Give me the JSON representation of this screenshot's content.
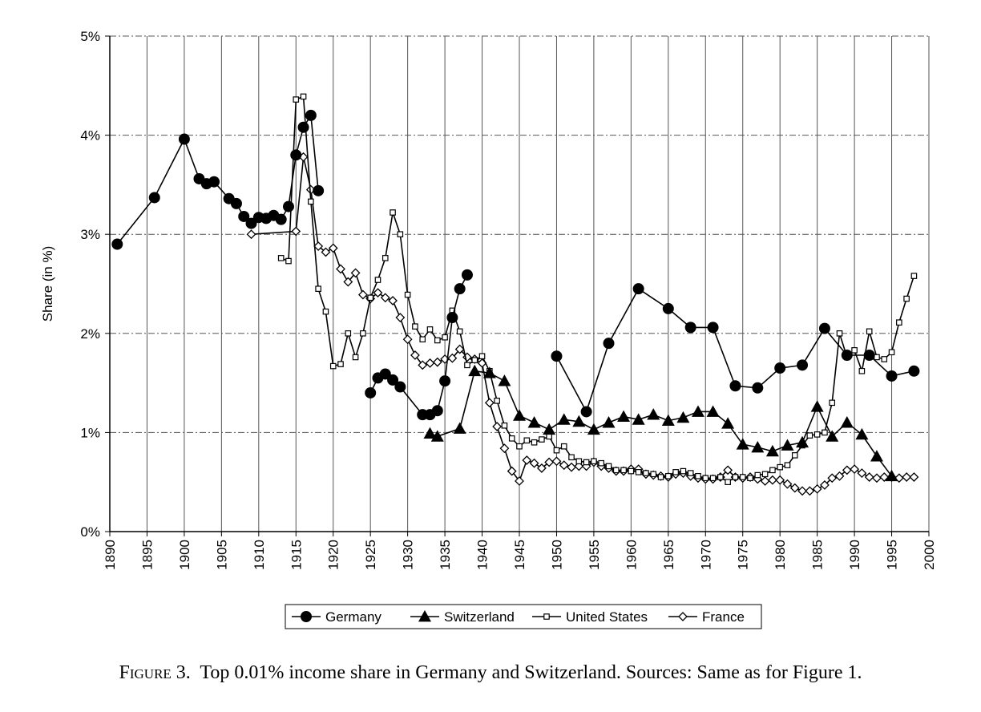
{
  "caption": {
    "label": "Figure 3.",
    "text": "Top 0.01% income share in Germany and Switzerland. Sources: Same as for Figure 1."
  },
  "chart_data": {
    "type": "line",
    "title": "",
    "xlabel": "",
    "ylabel": "Share (in %)",
    "xlim": [
      1890,
      2000
    ],
    "ylim": [
      0,
      5
    ],
    "x_ticks": [
      "1890",
      "1895",
      "1900",
      "1905",
      "1910",
      "1915",
      "1920",
      "1925",
      "1930",
      "1935",
      "1940",
      "1945",
      "1950",
      "1955",
      "1960",
      "1965",
      "1970",
      "1975",
      "1980",
      "1985",
      "1990",
      "1995",
      "2000"
    ],
    "y_ticks": [
      "0%",
      "1%",
      "2%",
      "3%",
      "4%",
      "5%"
    ],
    "grid": true,
    "legend_position": "bottom",
    "series": [
      {
        "name": "Germany",
        "marker": "filled-circle",
        "color": "#000000",
        "points": [
          [
            1891,
            2.9
          ],
          [
            1896,
            3.37
          ],
          [
            1900,
            3.96
          ],
          [
            1902,
            3.56
          ],
          [
            1903,
            3.51
          ],
          [
            1904,
            3.53
          ],
          [
            1906,
            3.36
          ],
          [
            1907,
            3.31
          ],
          [
            1908,
            3.18
          ],
          [
            1909,
            3.11
          ],
          [
            1910,
            3.17
          ],
          [
            1911,
            3.16
          ],
          [
            1912,
            3.19
          ],
          [
            1913,
            3.15
          ],
          [
            1914,
            3.28
          ],
          [
            1915,
            3.8
          ],
          [
            1916,
            4.08
          ],
          [
            1917,
            4.2
          ],
          [
            1918,
            3.44
          ],
          null,
          [
            1925,
            1.4
          ],
          [
            1926,
            1.55
          ],
          [
            1927,
            1.59
          ],
          [
            1928,
            1.53
          ],
          [
            1929,
            1.46
          ],
          [
            1932,
            1.18
          ],
          [
            1933,
            1.18
          ],
          [
            1934,
            1.22
          ],
          [
            1935,
            1.52
          ],
          [
            1936,
            2.16
          ],
          [
            1937,
            2.45
          ],
          [
            1938,
            2.59
          ],
          null,
          [
            1950,
            1.77
          ],
          [
            1954,
            1.21
          ],
          [
            1957,
            1.9
          ],
          [
            1961,
            2.45
          ],
          [
            1965,
            2.25
          ],
          [
            1968,
            2.06
          ],
          [
            1971,
            2.06
          ],
          [
            1974,
            1.47
          ],
          [
            1977,
            1.45
          ],
          [
            1980,
            1.65
          ],
          [
            1983,
            1.68
          ],
          [
            1986,
            2.05
          ],
          [
            1989,
            1.78
          ],
          [
            1992,
            1.78
          ],
          [
            1995,
            1.57
          ],
          [
            1998,
            1.62
          ]
        ]
      },
      {
        "name": "Switzerland",
        "marker": "filled-triangle",
        "color": "#000000",
        "points": [
          [
            1933,
            0.99
          ],
          [
            1934,
            0.96
          ],
          [
            1937,
            1.04
          ],
          [
            1939,
            1.62
          ],
          [
            1941,
            1.6
          ],
          [
            1943,
            1.52
          ],
          [
            1945,
            1.17
          ],
          [
            1947,
            1.1
          ],
          [
            1949,
            1.03
          ],
          [
            1951,
            1.13
          ],
          [
            1953,
            1.11
          ],
          [
            1955,
            1.03
          ],
          [
            1957,
            1.1
          ],
          [
            1959,
            1.16
          ],
          [
            1961,
            1.13
          ],
          [
            1963,
            1.18
          ],
          [
            1965,
            1.12
          ],
          [
            1967,
            1.15
          ],
          [
            1969,
            1.21
          ],
          [
            1971,
            1.21
          ],
          [
            1973,
            1.09
          ],
          [
            1975,
            0.88
          ],
          [
            1977,
            0.85
          ],
          [
            1979,
            0.81
          ],
          [
            1981,
            0.87
          ],
          [
            1983,
            0.9
          ],
          [
            1985,
            1.26
          ],
          [
            1987,
            0.96
          ],
          [
            1989,
            1.1
          ],
          [
            1991,
            0.98
          ],
          [
            1993,
            0.76
          ],
          [
            1995,
            0.56
          ]
        ]
      },
      {
        "name": "United States",
        "marker": "open-square",
        "color": "#000000",
        "points": [
          [
            1913,
            2.76
          ],
          [
            1914,
            2.73
          ],
          [
            1915,
            4.36
          ],
          [
            1916,
            4.39
          ],
          [
            1917,
            3.33
          ],
          [
            1918,
            2.45
          ],
          [
            1919,
            2.22
          ],
          [
            1920,
            1.67
          ],
          [
            1921,
            1.69
          ],
          [
            1922,
            2.0
          ],
          [
            1923,
            1.76
          ],
          [
            1924,
            2.0
          ],
          [
            1925,
            2.36
          ],
          [
            1926,
            2.54
          ],
          [
            1927,
            2.76
          ],
          [
            1928,
            3.22
          ],
          [
            1929,
            3.0
          ],
          [
            1930,
            2.39
          ],
          [
            1931,
            2.07
          ],
          [
            1932,
            1.94
          ],
          [
            1933,
            2.04
          ],
          [
            1934,
            1.93
          ],
          [
            1935,
            1.96
          ],
          [
            1936,
            2.23
          ],
          [
            1937,
            2.02
          ],
          [
            1938,
            1.68
          ],
          [
            1939,
            1.73
          ],
          [
            1940,
            1.77
          ],
          [
            1941,
            1.62
          ],
          [
            1942,
            1.32
          ],
          [
            1943,
            1.07
          ],
          [
            1944,
            0.94
          ],
          [
            1945,
            0.86
          ],
          [
            1946,
            0.92
          ],
          [
            1947,
            0.9
          ],
          [
            1948,
            0.93
          ],
          [
            1949,
            0.96
          ],
          [
            1950,
            0.82
          ],
          [
            1951,
            0.86
          ],
          [
            1952,
            0.75
          ],
          [
            1953,
            0.71
          ],
          [
            1954,
            0.7
          ],
          [
            1955,
            0.71
          ],
          [
            1956,
            0.69
          ],
          [
            1957,
            0.66
          ],
          [
            1958,
            0.62
          ],
          [
            1959,
            0.62
          ],
          [
            1960,
            0.61
          ],
          [
            1961,
            0.6
          ],
          [
            1962,
            0.59
          ],
          [
            1963,
            0.58
          ],
          [
            1964,
            0.55
          ],
          [
            1965,
            0.56
          ],
          [
            1966,
            0.6
          ],
          [
            1967,
            0.61
          ],
          [
            1968,
            0.59
          ],
          [
            1969,
            0.56
          ],
          [
            1970,
            0.54
          ],
          [
            1971,
            0.54
          ],
          [
            1972,
            0.55
          ],
          [
            1973,
            0.5
          ],
          [
            1974,
            0.55
          ],
          [
            1975,
            0.55
          ],
          [
            1976,
            0.54
          ],
          [
            1977,
            0.57
          ],
          [
            1978,
            0.58
          ],
          [
            1979,
            0.62
          ],
          [
            1980,
            0.65
          ],
          [
            1981,
            0.67
          ],
          [
            1982,
            0.77
          ],
          [
            1983,
            0.87
          ],
          [
            1984,
            0.97
          ],
          [
            1985,
            0.98
          ],
          [
            1986,
            1.0
          ],
          [
            1987,
            1.3
          ],
          [
            1988,
            2.0
          ],
          [
            1989,
            1.76
          ],
          [
            1990,
            1.83
          ],
          [
            1991,
            1.62
          ],
          [
            1992,
            2.02
          ],
          [
            1993,
            1.76
          ],
          [
            1994,
            1.74
          ],
          [
            1995,
            1.81
          ],
          [
            1996,
            2.11
          ],
          [
            1997,
            2.35
          ],
          [
            1998,
            2.58
          ]
        ]
      },
      {
        "name": "France",
        "marker": "open-diamond",
        "color": "#000000",
        "points": [
          [
            1909,
            3.0
          ],
          [
            1915,
            3.03
          ],
          [
            1916,
            3.78
          ],
          [
            1917,
            3.45
          ],
          [
            1918,
            2.88
          ],
          [
            1919,
            2.82
          ],
          [
            1920,
            2.86
          ],
          [
            1921,
            2.65
          ],
          [
            1922,
            2.52
          ],
          [
            1923,
            2.61
          ],
          [
            1924,
            2.39
          ],
          [
            1925,
            2.35
          ],
          [
            1926,
            2.41
          ],
          [
            1927,
            2.36
          ],
          [
            1928,
            2.33
          ],
          [
            1929,
            2.16
          ],
          [
            1930,
            1.94
          ],
          [
            1931,
            1.78
          ],
          [
            1932,
            1.68
          ],
          [
            1933,
            1.7
          ],
          [
            1934,
            1.71
          ],
          [
            1935,
            1.74
          ],
          [
            1936,
            1.75
          ],
          [
            1937,
            1.84
          ],
          [
            1938,
            1.76
          ],
          [
            1939,
            1.74
          ],
          [
            1940,
            1.7
          ],
          [
            1941,
            1.3
          ],
          [
            1942,
            1.06
          ],
          [
            1943,
            0.84
          ],
          [
            1944,
            0.61
          ],
          [
            1945,
            0.51
          ],
          [
            1946,
            0.72
          ],
          [
            1947,
            0.69
          ],
          [
            1948,
            0.64
          ],
          [
            1949,
            0.7
          ],
          [
            1950,
            0.71
          ],
          [
            1951,
            0.67
          ],
          [
            1952,
            0.65
          ],
          [
            1953,
            0.66
          ],
          [
            1954,
            0.66
          ],
          [
            1955,
            0.7
          ],
          [
            1956,
            0.66
          ],
          [
            1957,
            0.64
          ],
          [
            1958,
            0.61
          ],
          [
            1959,
            0.61
          ],
          [
            1960,
            0.63
          ],
          [
            1961,
            0.63
          ],
          [
            1962,
            0.58
          ],
          [
            1963,
            0.57
          ],
          [
            1964,
            0.56
          ],
          [
            1965,
            0.55
          ],
          [
            1966,
            0.58
          ],
          [
            1967,
            0.59
          ],
          [
            1968,
            0.56
          ],
          [
            1969,
            0.54
          ],
          [
            1970,
            0.53
          ],
          [
            1971,
            0.53
          ],
          [
            1972,
            0.55
          ],
          [
            1973,
            0.62
          ],
          [
            1974,
            0.55
          ],
          [
            1975,
            0.54
          ],
          [
            1976,
            0.55
          ],
          [
            1977,
            0.53
          ],
          [
            1978,
            0.51
          ],
          [
            1979,
            0.52
          ],
          [
            1980,
            0.52
          ],
          [
            1981,
            0.48
          ],
          [
            1982,
            0.44
          ],
          [
            1983,
            0.41
          ],
          [
            1984,
            0.41
          ],
          [
            1985,
            0.43
          ],
          [
            1986,
            0.47
          ],
          [
            1987,
            0.54
          ],
          [
            1988,
            0.56
          ],
          [
            1989,
            0.62
          ],
          [
            1990,
            0.63
          ],
          [
            1991,
            0.59
          ],
          [
            1992,
            0.55
          ],
          [
            1993,
            0.54
          ],
          [
            1994,
            0.55
          ],
          [
            1995,
            0.55
          ],
          [
            1996,
            0.54
          ],
          [
            1997,
            0.55
          ],
          [
            1998,
            0.55
          ]
        ]
      }
    ]
  }
}
